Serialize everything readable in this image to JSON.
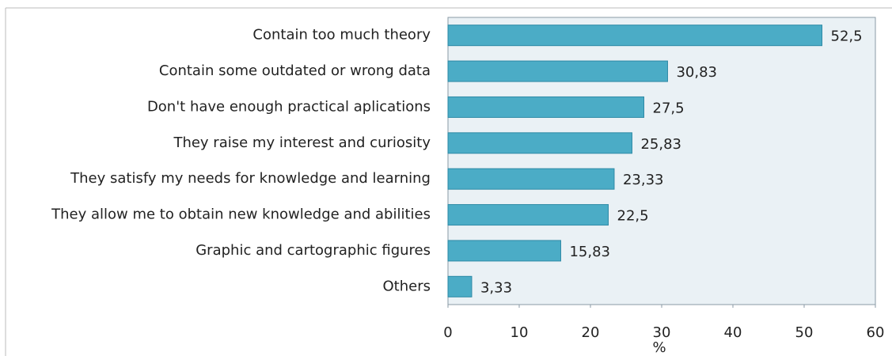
{
  "chart_data": {
    "type": "bar",
    "orientation": "horizontal",
    "categories": [
      "Contain too much theory",
      "Contain some outdated or wrong data",
      "Don't have enough practical aplications",
      "They raise my interest and curiosity",
      "They satisfy my needs for knowledge and learning",
      "They allow me to obtain new knowledge and abilities",
      "Graphic and cartographic figures",
      "Others"
    ],
    "values": [
      52.5,
      30.83,
      27.5,
      25.83,
      23.33,
      22.5,
      15.83,
      3.33
    ],
    "value_labels": [
      "52,5",
      "30,83",
      "27,5",
      "25,83",
      "23,33",
      "22,5",
      "15,83",
      "3,33"
    ],
    "color": "#4bacc6",
    "x_label": "%",
    "xlim": [
      0,
      60
    ],
    "xticks": [
      0,
      10,
      20,
      30,
      40,
      50,
      60
    ],
    "grid": false
  }
}
